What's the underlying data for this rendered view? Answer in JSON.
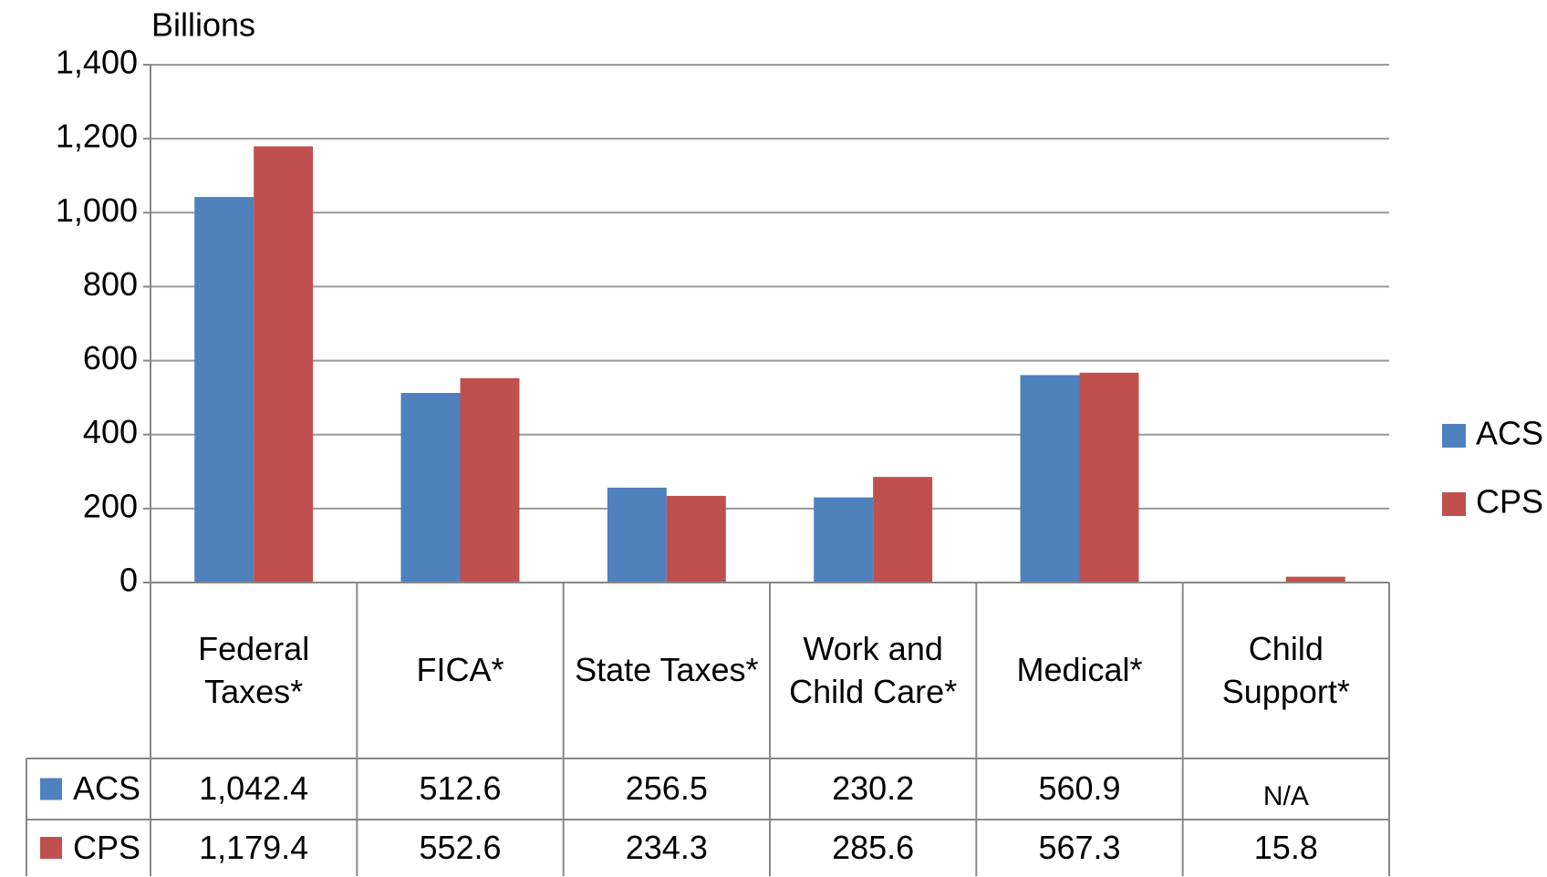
{
  "chart_data": {
    "type": "bar",
    "y_axis_label": "Billions",
    "categories": [
      "Federal Taxes*",
      "FICA*",
      "State Taxes*",
      "Work and Child Care*",
      "Medical*",
      "Child Support*"
    ],
    "series": [
      {
        "name": "ACS",
        "color": "#4f81bd",
        "values": [
          1042.4,
          512.6,
          256.5,
          230.2,
          560.9,
          null
        ],
        "value_labels": [
          "1,042.4",
          "512.6",
          "256.5",
          "230.2",
          "560.9",
          "N/A"
        ]
      },
      {
        "name": "CPS",
        "color": "#c0504d",
        "values": [
          1179.4,
          552.6,
          234.3,
          285.6,
          567.3,
          15.8
        ],
        "value_labels": [
          "1,179.4",
          "552.6",
          "234.3",
          "285.6",
          "567.3",
          "15.8"
        ]
      }
    ],
    "ylim": [
      0,
      1400
    ],
    "yticks": [
      0,
      200,
      400,
      600,
      800,
      {
        "value": 1000,
        "label": "1,000"
      },
      {
        "value": 1200,
        "label": "1,200"
      },
      {
        "value": 1400,
        "label": "1,400"
      }
    ],
    "grid": true,
    "legend": "right"
  }
}
